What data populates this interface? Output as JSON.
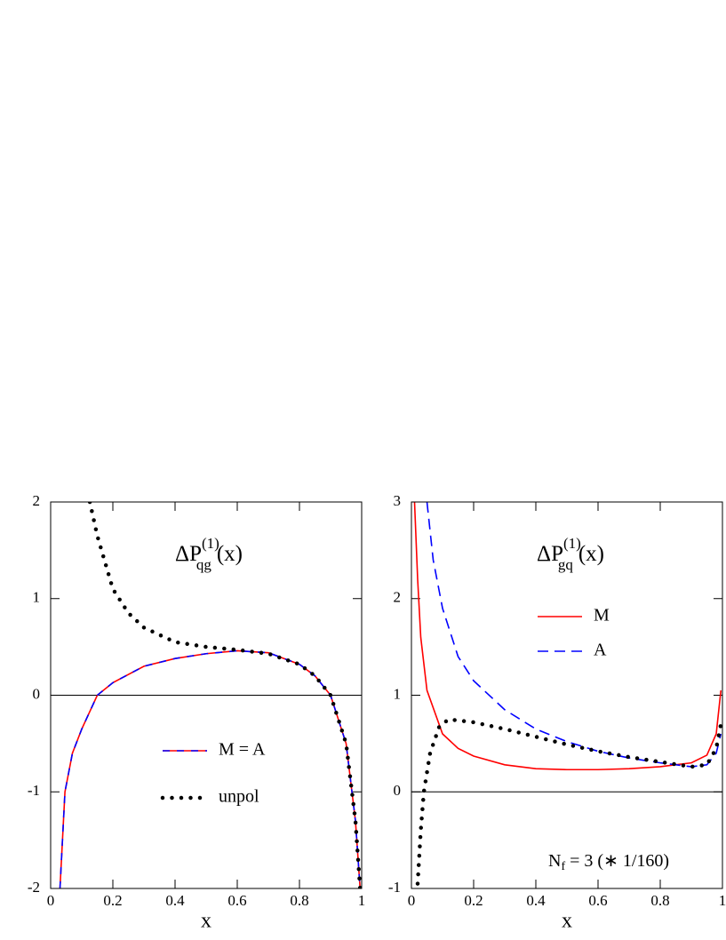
{
  "chart_data": [
    {
      "type": "line",
      "annotation": {
        "base": "ΔP",
        "sub": "qg",
        "sup": "(1)",
        "arg": "(x)"
      },
      "xlabel": "x",
      "xlim": [
        0,
        1
      ],
      "xticks": [
        0,
        0.2,
        0.4,
        0.6,
        0.8,
        1
      ],
      "ylim": [
        -2,
        2
      ],
      "yticks": [
        -2,
        -1,
        0,
        1,
        2
      ],
      "zero_line": true,
      "series": [
        {
          "name": "M = A",
          "color": "#ff0000",
          "dash_color": "#0000ff",
          "style": "solid",
          "x": [
            0.03,
            0.046,
            0.07,
            0.1,
            0.15,
            0.2,
            0.3,
            0.4,
            0.5,
            0.6,
            0.7,
            0.8,
            0.85,
            0.9,
            0.95,
            0.98,
            0.995
          ],
          "values": [
            -2,
            -1,
            -0.6,
            -0.35,
            0,
            0.13,
            0.3,
            0.38,
            0.43,
            0.46,
            0.44,
            0.32,
            0.2,
            0,
            -0.5,
            -1.3,
            -2
          ]
        },
        {
          "name": "unpol",
          "color": "#000000",
          "style": "dotted",
          "x": [
            0.126,
            0.15,
            0.2,
            0.25,
            0.3,
            0.4,
            0.5,
            0.6,
            0.7,
            0.8,
            0.85,
            0.9,
            0.95,
            0.98,
            0.995
          ],
          "values": [
            2,
            1.65,
            1.1,
            0.85,
            0.7,
            0.55,
            0.5,
            0.47,
            0.43,
            0.32,
            0.2,
            0,
            -0.5,
            -1.3,
            -2
          ]
        }
      ]
    },
    {
      "type": "line",
      "annotation": {
        "base": "ΔP",
        "sub": "gq",
        "sup": "(1)",
        "arg": "(x)"
      },
      "note": {
        "base": "N",
        "sub": "f",
        "rest": "= 3  (∗ 1/160)"
      },
      "xlabel": "x",
      "xlim": [
        0,
        1
      ],
      "xticks": [
        0,
        0.2,
        0.4,
        0.6,
        0.8,
        1
      ],
      "ylim": [
        -1,
        3
      ],
      "yticks": [
        -1,
        0,
        1,
        2,
        3
      ],
      "zero_line": true,
      "series": [
        {
          "name": "M",
          "color": "#ff0000",
          "style": "solid",
          "x": [
            0.01,
            0.02,
            0.03,
            0.05,
            0.1,
            0.15,
            0.2,
            0.3,
            0.4,
            0.5,
            0.6,
            0.7,
            0.8,
            0.9,
            0.95,
            0.98,
            0.995
          ],
          "values": [
            3,
            2.2,
            1.6,
            1.05,
            0.6,
            0.45,
            0.37,
            0.28,
            0.24,
            0.23,
            0.23,
            0.24,
            0.26,
            0.3,
            0.38,
            0.6,
            1.05
          ]
        },
        {
          "name": "A",
          "color": "#0000ff",
          "style": "dashed",
          "x": [
            0.05,
            0.07,
            0.1,
            0.15,
            0.2,
            0.3,
            0.4,
            0.5,
            0.6,
            0.7,
            0.8,
            0.9,
            0.95,
            0.98,
            0.995
          ],
          "values": [
            3,
            2.4,
            1.9,
            1.4,
            1.15,
            0.85,
            0.65,
            0.52,
            0.42,
            0.35,
            0.3,
            0.26,
            0.28,
            0.4,
            0.6
          ]
        },
        {
          "name": "unpol",
          "color": "#000000",
          "style": "dotted",
          "in_legend": false,
          "x": [
            0.02,
            0.03,
            0.04,
            0.06,
            0.09,
            0.12,
            0.2,
            0.3,
            0.4,
            0.5,
            0.6,
            0.7,
            0.8,
            0.9,
            0.95,
            0.98,
            0.995
          ],
          "values": [
            -0.95,
            -0.4,
            0,
            0.4,
            0.68,
            0.75,
            0.72,
            0.65,
            0.57,
            0.49,
            0.42,
            0.36,
            0.31,
            0.26,
            0.28,
            0.45,
            0.7
          ]
        }
      ]
    }
  ]
}
